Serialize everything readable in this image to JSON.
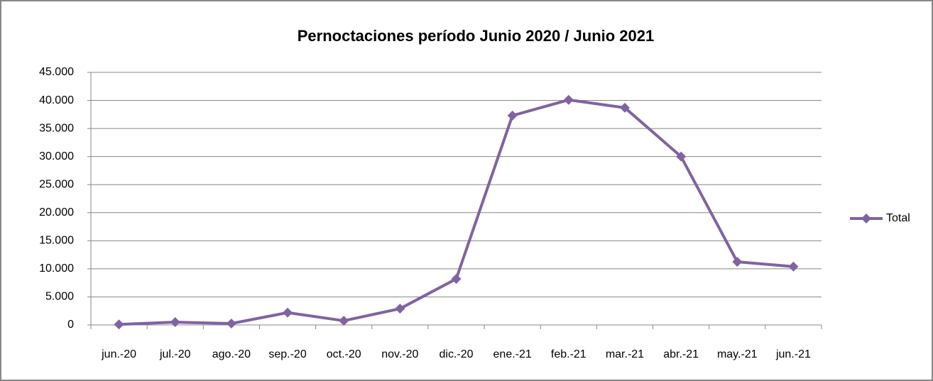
{
  "chart_data": {
    "type": "line",
    "title": "Pernoctaciones período Junio 2020 / Junio 2021",
    "categories": [
      "jun.-20",
      "jul.-20",
      "ago.-20",
      "sep.-20",
      "oct.-20",
      "nov.-20",
      "dic.-20",
      "ene.-21",
      "feb.-21",
      "mar.-21",
      "abr.-21",
      "may.-21",
      "jun.-21"
    ],
    "series": [
      {
        "name": "Total",
        "color": "#7f63a2",
        "values": [
          100,
          500,
          250,
          2200,
          750,
          2900,
          8200,
          37300,
          40100,
          38700,
          30000,
          11250,
          10400
        ]
      }
    ],
    "ylim": [
      0,
      45000
    ],
    "yticks": [
      0,
      {
        "value": 5000,
        "label": "5.000"
      },
      {
        "value": 10000,
        "label": "10.000"
      },
      {
        "value": 15000,
        "label": "15.000"
      },
      {
        "value": 20000,
        "label": "20.000"
      },
      {
        "value": 25000,
        "label": "25.000"
      },
      {
        "value": 30000,
        "label": "30.000"
      },
      {
        "value": 35000,
        "label": "35.000"
      },
      {
        "value": 40000,
        "label": "40.000"
      },
      {
        "value": 45000,
        "label": "45.000"
      }
    ],
    "grid": true,
    "legend": "right"
  }
}
